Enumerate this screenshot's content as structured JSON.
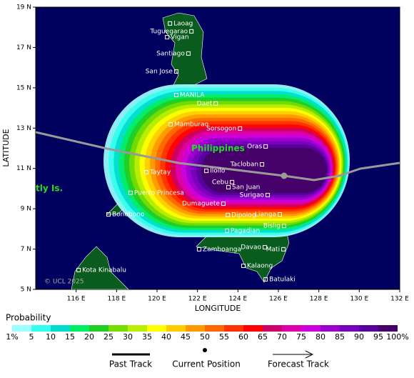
{
  "axes": {
    "x_label": "LONGITUDE",
    "y_label": "LATITUDE",
    "xlim": [
      114,
      132
    ],
    "ylim": [
      5,
      19
    ],
    "xticks": [
      {
        "value": 116,
        "label": "116 E"
      },
      {
        "value": 118,
        "label": "118 E"
      },
      {
        "value": 120,
        "label": "120 E"
      },
      {
        "value": 122,
        "label": "122 E"
      },
      {
        "value": 124,
        "label": "124 E"
      },
      {
        "value": 126,
        "label": "126 E"
      },
      {
        "value": 128,
        "label": "128 E"
      },
      {
        "value": 130,
        "label": "130 E"
      },
      {
        "value": 132,
        "label": "132 E"
      }
    ],
    "yticks": [
      {
        "value": 5,
        "label": "5 N"
      },
      {
        "value": 7,
        "label": "7 N"
      },
      {
        "value": 9,
        "label": "9 N"
      },
      {
        "value": 11,
        "label": "11 N"
      },
      {
        "value": 13,
        "label": "13 N"
      },
      {
        "value": 15,
        "label": "15 N"
      },
      {
        "value": 17,
        "label": "17 N"
      },
      {
        "value": 19,
        "label": "19 N"
      }
    ]
  },
  "labels": {
    "region": "Philippines",
    "island": "tly Is.",
    "copyright": "© UCL 2025"
  },
  "cities": [
    {
      "name": "Laoag",
      "lon": 120.64,
      "lat": 18.19
    },
    {
      "name": "Tuguegarao",
      "lon": 121.7,
      "lat": 17.8
    },
    {
      "name": "Vigan",
      "lon": 120.5,
      "lat": 17.51
    },
    {
      "name": "Santiago",
      "lon": 121.55,
      "lat": 16.7
    },
    {
      "name": "San Jose",
      "lon": 120.95,
      "lat": 15.81
    },
    {
      "name": "MANILA",
      "lon": 120.95,
      "lat": 14.64
    },
    {
      "name": "Daet",
      "lon": 122.9,
      "lat": 14.22
    },
    {
      "name": "Mamburao",
      "lon": 120.67,
      "lat": 13.19
    },
    {
      "name": "Sorsogon",
      "lon": 124.1,
      "lat": 12.98
    },
    {
      "name": "Oras",
      "lon": 125.37,
      "lat": 12.09
    },
    {
      "name": "Tacloban",
      "lon": 125.19,
      "lat": 11.2
    },
    {
      "name": "Iloilo",
      "lon": 122.44,
      "lat": 10.88
    },
    {
      "name": "Taytay",
      "lon": 119.47,
      "lat": 10.81
    },
    {
      "name": "Cebu",
      "lon": 123.71,
      "lat": 10.32
    },
    {
      "name": "San Juan",
      "lon": 123.53,
      "lat": 10.07
    },
    {
      "name": "Surigao",
      "lon": 125.47,
      "lat": 9.68
    },
    {
      "name": "Puerto Princesa",
      "lon": 118.69,
      "lat": 9.79
    },
    {
      "name": "Dumaguete",
      "lon": 123.28,
      "lat": 9.25
    },
    {
      "name": "Lianga",
      "lon": 126.07,
      "lat": 8.72
    },
    {
      "name": "Bonobono",
      "lon": 117.6,
      "lat": 8.72
    },
    {
      "name": "Dipolog",
      "lon": 123.5,
      "lat": 8.69
    },
    {
      "name": "Bislig",
      "lon": 126.28,
      "lat": 8.15
    },
    {
      "name": "Pagadian",
      "lon": 123.46,
      "lat": 7.91
    },
    {
      "name": "Zamboanga",
      "lon": 122.08,
      "lat": 6.99
    },
    {
      "name": "Davao",
      "lon": 125.33,
      "lat": 7.09
    },
    {
      "name": "Mati",
      "lon": 126.25,
      "lat": 6.99
    },
    {
      "name": "Kota Kinabalu",
      "lon": 116.12,
      "lat": 5.96
    },
    {
      "name": "Kalaong",
      "lon": 124.27,
      "lat": 6.17
    },
    {
      "name": "Batulaki",
      "lon": 125.37,
      "lat": 5.5
    }
  ],
  "probability": {
    "title": "Probability",
    "ticks": [
      {
        "value": 1,
        "label": "1%"
      },
      5,
      10,
      15,
      20,
      25,
      30,
      35,
      40,
      45,
      50,
      55,
      60,
      65,
      70,
      75,
      80,
      85,
      90,
      95,
      {
        "value": 100,
        "label": "100%"
      }
    ],
    "colors": [
      "#99ffff",
      "#33ffee",
      "#00ddcc",
      "#00ee66",
      "#22cc22",
      "#77dd00",
      "#bbee00",
      "#ffff00",
      "#ffcc00",
      "#ff9900",
      "#ff6600",
      "#ff3300",
      "#ff0000",
      "#cc0066",
      "#dd00aa",
      "#cc00dd",
      "#9900cc",
      "#7700bb",
      "#550099",
      "#440066"
    ]
  },
  "key": {
    "past": "Past Track",
    "current": "Current Position",
    "forecast": "Forecast Track"
  }
}
